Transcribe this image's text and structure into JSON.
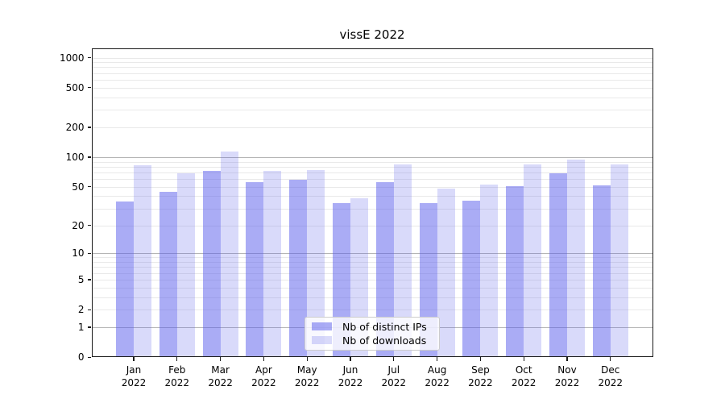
{
  "chart_data": {
    "type": "bar",
    "title": "vissE 2022",
    "year_label": "2022",
    "categories": [
      "Jan",
      "Feb",
      "Mar",
      "Apr",
      "May",
      "Jun",
      "Jul",
      "Aug",
      "Sep",
      "Oct",
      "Nov",
      "Dec"
    ],
    "series": [
      {
        "name": "Nb of distinct IPs",
        "color": "rgba(92,96,235,0.52)",
        "values": [
          35,
          44,
          73,
          56,
          59,
          34,
          56,
          34,
          36,
          51,
          68,
          52
        ]
      },
      {
        "name": "Nb of downloads",
        "color": "rgba(92,96,235,0.235)",
        "values": [
          83,
          69,
          113,
          72,
          74,
          38,
          84,
          48,
          53,
          85,
          95,
          84
        ]
      }
    ],
    "xlabel": "",
    "ylabel": "",
    "yscale": "log1p",
    "ylim": [
      0,
      1250
    ],
    "y_ticks": [
      0,
      1,
      2,
      5,
      10,
      20,
      50,
      100,
      200,
      500,
      1000
    ],
    "grid": true,
    "grid_minor_color": "#e9e9e9",
    "grid_major_color": "#b5b5b5",
    "grid_major_values": [
      1,
      10,
      100
    ],
    "legend_position": "lower center",
    "background_color": "#ffffff",
    "spine_color": "#1a1a1a"
  }
}
